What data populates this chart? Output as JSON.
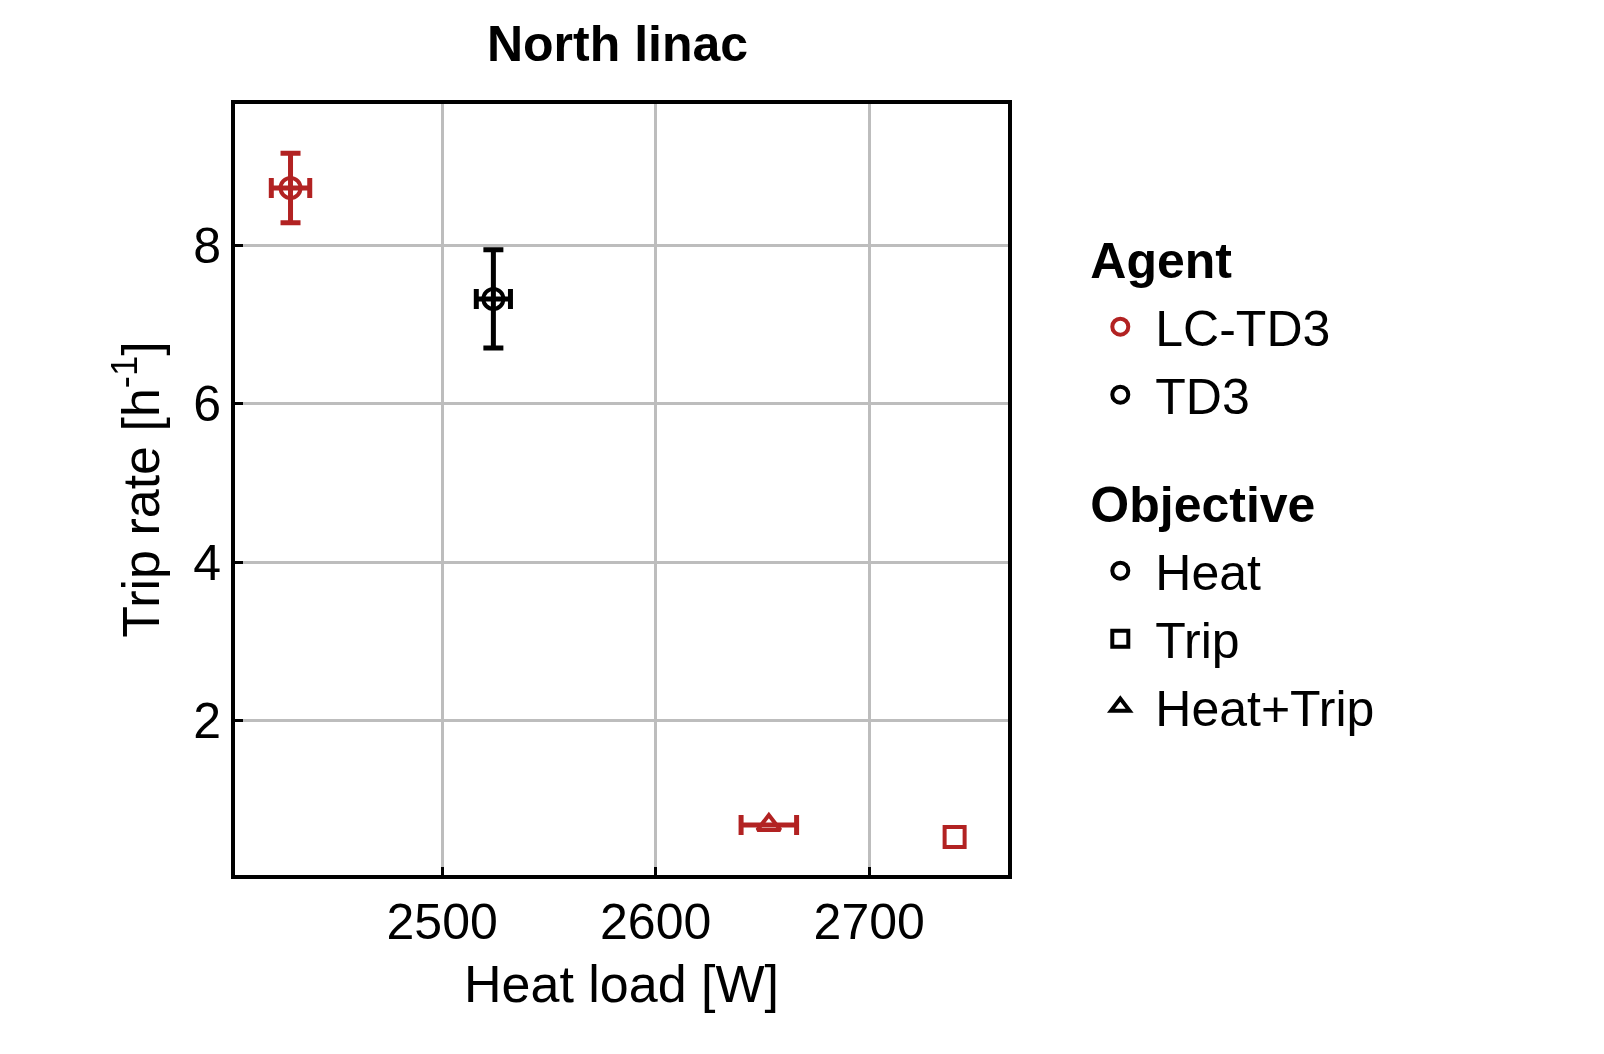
{
  "chart_data": {
    "type": "scatter",
    "title": "North linac",
    "legend_title": "Agent",
    "annotations": [
      "Objective"
    ],
    "xlabel": "Heat load [W]",
    "ylabel": "Trip rate [h$^{-1}$]",
    "xlim": [
      2403,
      2765
    ],
    "xticks": [
      2500,
      2600,
      2700
    ],
    "ylim": [
      0.05,
      9.78
    ],
    "yticks": [
      2,
      4,
      6,
      8
    ],
    "grid": true,
    "legend": "right",
    "series": [
      {
        "name": "LC-TD3",
        "color": "#b22222",
        "marker": "circle",
        "x": [
          2429
        ],
        "values": [
          8.72
        ],
        "errors": [
          0.44
        ],
        "xerrors": [
          9
        ]
      },
      {
        "name": "TD3",
        "color": "#000000",
        "marker": "circle",
        "x": [
          2524
        ],
        "values": [
          7.32
        ],
        "errors": [
          0.62
        ],
        "xerrors": [
          8
        ]
      },
      {
        "color": "#b22222",
        "marker": "triangle",
        "x": [
          2653
        ],
        "values": [
          0.68
        ],
        "errors": [
          null
        ],
        "xerrors": [
          13
        ]
      },
      {
        "color": "#b22222",
        "marker": "square",
        "x": [
          2740
        ],
        "values": [
          0.53
        ],
        "errors": [
          null
        ],
        "xerrors": [
          null
        ]
      },
      {
        "name": "Heat",
        "color": "#000000",
        "marker": "circle",
        "x": [
          null
        ],
        "values": [
          null
        ]
      },
      {
        "name": "Trip",
        "color": "#000000",
        "marker": "square",
        "x": [
          null
        ],
        "values": [
          null
        ]
      },
      {
        "name": "Heat+Trip",
        "color": "#000000",
        "marker": "triangle",
        "x": [
          null
        ],
        "values": [
          null
        ]
      }
    ]
  }
}
